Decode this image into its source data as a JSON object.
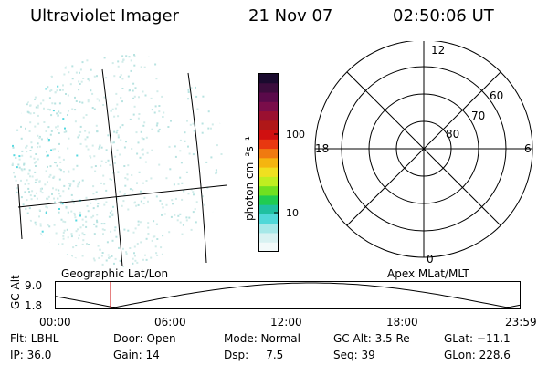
{
  "header": {
    "title": "Ultraviolet Imager",
    "date": "21 Nov 07",
    "time": "02:50:06 UT"
  },
  "image_panel": {
    "label": "Geographic Lat/Lon",
    "colors": {
      "speckle_light": "#d2ecea",
      "speckle_mid": "#b8e3e1",
      "speckle_bright": "#55d8e0",
      "grid": "#000000"
    }
  },
  "colorbar": {
    "unit_label": "photon cm⁻²s⁻¹",
    "ticks": [
      "100",
      "10"
    ],
    "colors": [
      "#1a0a2e",
      "#3b0c3c",
      "#5a0a4a",
      "#7a0d4a",
      "#9a1030",
      "#b01818",
      "#d01010",
      "#e83810",
      "#f07a10",
      "#f5b510",
      "#f0e020",
      "#c0ee20",
      "#70e020",
      "#20cc50",
      "#20c0a0",
      "#50d8d8",
      "#a6e8e8",
      "#d8f2f2",
      "#f2fafa"
    ]
  },
  "polar_plot": {
    "label": "Apex MLat/MLT",
    "mlt_labels": {
      "top": "12",
      "left": "18",
      "right": "6",
      "bottom": "0"
    },
    "mlat_labels": [
      "60",
      "70",
      "80"
    ]
  },
  "altitude_strip": {
    "ylabel": "GC Alt",
    "yticks": [
      "9.0",
      "1.8"
    ],
    "xticks": [
      "00:00",
      "06:00",
      "12:00",
      "18:00",
      "23:59"
    ],
    "marker_time": "02:50",
    "colors": {
      "marker": "#cc0000",
      "curve": "#000000"
    }
  },
  "info": {
    "flt": "Flt: LBHL",
    "ip": "IP: 36.0",
    "door": "Door: Open",
    "gain": "Gain: 14",
    "mode": "Mode: Normal",
    "dsp": "Dsp:     7.5",
    "gcalt": "GC Alt: 3.5 Re",
    "seq": "Seq: 39",
    "glat": "GLat: −11.1",
    "glon": "GLon: 228.6"
  }
}
